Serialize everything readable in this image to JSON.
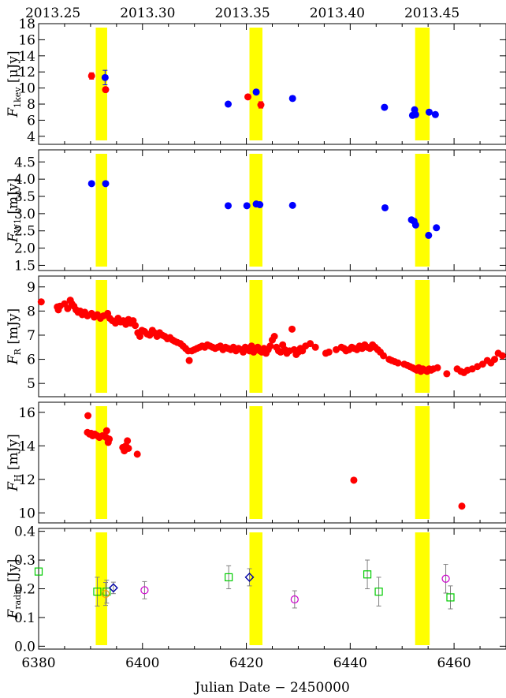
{
  "figure": {
    "top_axis_ticks": [
      "2013.25",
      "2013.30",
      "2013.35",
      "2013.40",
      "2013.45"
    ],
    "top_axis_tick_jd": [
      6382.75,
      6401.0,
      6419.25,
      6437.5,
      6455.75
    ],
    "xlabel": "Julian Date − 2450000",
    "xlim": [
      6380,
      6470
    ],
    "x_ticks": [
      "6380",
      "6400",
      "6420",
      "6440",
      "6460"
    ],
    "highlight_bands": [
      [
        6391.0,
        6393.2
      ],
      [
        6420.6,
        6423.1
      ],
      [
        6452.5,
        6455.3
      ]
    ],
    "highlight_color": "#ffff00",
    "colors": {
      "red": "#ff0000",
      "blue": "#0000ff",
      "green": "#00cc00",
      "magenta": "#cc00cc",
      "orange": "#ff9900",
      "navy": "#0000aa",
      "grey_errorbar": "#808080"
    }
  },
  "chart_data": [
    {
      "type": "scatter",
      "panel": "F_1kev",
      "ylabel_main": "F",
      "ylabel_sub": "1kev",
      "ylabel_unit": "[μJy]",
      "ylim": [
        3,
        18
      ],
      "y_ticks": [
        "4",
        "6",
        "8",
        "10",
        "12",
        "14",
        "16",
        "18"
      ],
      "series": [
        {
          "color": "red",
          "marker": "filled-circle",
          "points": [
            [
              6390.2,
              11.5,
              0.4
            ],
            [
              6392.9,
              9.8,
              0.3
            ],
            [
              6420.3,
              8.9,
              0.2
            ],
            [
              6422.8,
              7.9,
              0.4
            ]
          ]
        },
        {
          "color": "blue",
          "marker": "filled-circle",
          "points": [
            [
              6392.8,
              11.3,
              0.9
            ],
            [
              6416.5,
              8.0,
              0.2
            ],
            [
              6421.9,
              9.5,
              0.3
            ],
            [
              6428.9,
              8.7,
              0.3
            ],
            [
              6446.6,
              7.6,
              0.3
            ],
            [
              6452.0,
              6.6,
              0.3
            ],
            [
              6452.4,
              7.3,
              0.3
            ],
            [
              6452.6,
              6.7,
              0.3
            ],
            [
              6455.2,
              7.0,
              0.3
            ],
            [
              6456.4,
              6.7,
              0.3
            ]
          ]
        }
      ]
    },
    {
      "type": "scatter",
      "panel": "F_W1",
      "ylabel_main": "F",
      "ylabel_sub": "W1",
      "ylabel_unit": "[mJy]",
      "ylim": [
        1.35,
        4.85
      ],
      "y_ticks": [
        "1.5",
        "2.0",
        "2.5",
        "3.0",
        "3.5",
        "4.0",
        "4.5"
      ],
      "series": [
        {
          "color": "blue",
          "marker": "filled-circle",
          "points": [
            [
              6390.2,
              3.87
            ],
            [
              6392.9,
              3.87
            ],
            [
              6416.5,
              3.23
            ],
            [
              6420.1,
              3.23
            ],
            [
              6421.9,
              3.28
            ],
            [
              6422.6,
              3.26
            ],
            [
              6428.9,
              3.24
            ],
            [
              6446.7,
              3.17
            ],
            [
              6451.8,
              2.82
            ],
            [
              6452.3,
              2.78
            ],
            [
              6452.6,
              2.67
            ],
            [
              6455.1,
              2.37
            ],
            [
              6456.6,
              2.59
            ]
          ]
        }
      ]
    },
    {
      "type": "scatter",
      "panel": "F_R",
      "ylabel_main": "F",
      "ylabel_sub": "R",
      "ylabel_unit": "[mJy]",
      "ylim": [
        4.45,
        9.45
      ],
      "y_ticks": [
        "5",
        "6",
        "7",
        "8",
        "9"
      ],
      "series": [
        {
          "color": "red",
          "marker": "filled-circle",
          "points": [
            [
              6380.5,
              8.38
            ],
            [
              6383.6,
              8.17
            ],
            [
              6383.8,
              8.05
            ],
            [
              6384.1,
              8.2
            ],
            [
              6385.0,
              8.3
            ],
            [
              6385.6,
              8.1
            ],
            [
              6386.1,
              8.45
            ],
            [
              6386.4,
              8.3
            ],
            [
              6386.8,
              8.2
            ],
            [
              6387.2,
              8.05
            ],
            [
              6387.6,
              7.95
            ],
            [
              6388.0,
              8.0
            ],
            [
              6388.4,
              7.85
            ],
            [
              6388.9,
              7.95
            ],
            [
              6389.4,
              7.8
            ],
            [
              6390.2,
              7.9
            ],
            [
              6390.7,
              7.75
            ],
            [
              6391.3,
              7.85
            ],
            [
              6391.9,
              7.7
            ],
            [
              6392.5,
              7.8
            ],
            [
              6393.3,
              7.9
            ],
            [
              6393.7,
              7.7
            ],
            [
              6394.2,
              7.6
            ],
            [
              6394.8,
              7.5
            ],
            [
              6395.3,
              7.7
            ],
            [
              6395.8,
              7.55
            ],
            [
              6396.3,
              7.6
            ],
            [
              6396.8,
              7.45
            ],
            [
              6397.3,
              7.65
            ],
            [
              6397.7,
              7.5
            ],
            [
              6398.2,
              7.6
            ],
            [
              6398.6,
              7.4
            ],
            [
              6399.1,
              7.1
            ],
            [
              6399.5,
              6.95
            ],
            [
              6399.9,
              7.2
            ],
            [
              6400.4,
              7.15
            ],
            [
              6400.9,
              7.05
            ],
            [
              6401.4,
              7.0
            ],
            [
              6401.9,
              7.2
            ],
            [
              6402.3,
              7.1
            ],
            [
              6402.8,
              6.95
            ],
            [
              6403.3,
              7.1
            ],
            [
              6403.8,
              7.0
            ],
            [
              6404.3,
              6.95
            ],
            [
              6404.8,
              6.85
            ],
            [
              6405.3,
              6.9
            ],
            [
              6405.8,
              6.8
            ],
            [
              6406.2,
              6.75
            ],
            [
              6406.7,
              6.7
            ],
            [
              6407.3,
              6.65
            ],
            [
              6407.8,
              6.55
            ],
            [
              6408.3,
              6.45
            ],
            [
              6408.8,
              6.35
            ],
            [
              6409.0,
              5.95
            ],
            [
              6409.5,
              6.35
            ],
            [
              6410.0,
              6.4
            ],
            [
              6410.5,
              6.45
            ],
            [
              6411.0,
              6.5
            ],
            [
              6411.5,
              6.55
            ],
            [
              6412.0,
              6.5
            ],
            [
              6412.5,
              6.6
            ],
            [
              6413.0,
              6.55
            ],
            [
              6413.5,
              6.5
            ],
            [
              6414.0,
              6.45
            ],
            [
              6414.5,
              6.5
            ],
            [
              6415.0,
              6.55
            ],
            [
              6415.5,
              6.4
            ],
            [
              6416.0,
              6.5
            ],
            [
              6416.5,
              6.45
            ],
            [
              6417.0,
              6.4
            ],
            [
              6417.5,
              6.5
            ],
            [
              6418.0,
              6.35
            ],
            [
              6418.5,
              6.45
            ],
            [
              6419.0,
              6.4
            ],
            [
              6419.4,
              6.3
            ],
            [
              6419.8,
              6.5
            ],
            [
              6420.2,
              6.45
            ],
            [
              6420.6,
              6.35
            ],
            [
              6421.0,
              6.55
            ],
            [
              6421.4,
              6.3
            ],
            [
              6421.8,
              6.4
            ],
            [
              6422.2,
              6.5
            ],
            [
              6422.6,
              6.35
            ],
            [
              6423.0,
              6.3
            ],
            [
              6423.4,
              6.45
            ],
            [
              6423.8,
              6.25
            ],
            [
              6424.2,
              6.4
            ],
            [
              6424.6,
              6.55
            ],
            [
              6425.0,
              6.8
            ],
            [
              6425.4,
              6.95
            ],
            [
              6425.8,
              6.5
            ],
            [
              6426.2,
              6.35
            ],
            [
              6426.6,
              6.3
            ],
            [
              6427.0,
              6.6
            ],
            [
              6427.4,
              6.4
            ],
            [
              6427.8,
              6.25
            ],
            [
              6428.3,
              6.35
            ],
            [
              6428.8,
              7.25
            ],
            [
              6429.2,
              6.4
            ],
            [
              6429.6,
              6.2
            ],
            [
              6430.0,
              6.3
            ],
            [
              6430.4,
              6.45
            ],
            [
              6430.8,
              6.35
            ],
            [
              6431.4,
              6.55
            ],
            [
              6432.3,
              6.65
            ],
            [
              6433.3,
              6.5
            ],
            [
              6435.3,
              6.25
            ],
            [
              6435.9,
              6.3
            ],
            [
              6437.3,
              6.4
            ],
            [
              6438.3,
              6.5
            ],
            [
              6438.8,
              6.45
            ],
            [
              6439.2,
              6.35
            ],
            [
              6439.8,
              6.4
            ],
            [
              6440.3,
              6.5
            ],
            [
              6440.8,
              6.45
            ],
            [
              6441.3,
              6.4
            ],
            [
              6441.8,
              6.55
            ],
            [
              6442.3,
              6.45
            ],
            [
              6442.8,
              6.6
            ],
            [
              6443.3,
              6.5
            ],
            [
              6443.8,
              6.45
            ],
            [
              6444.3,
              6.6
            ],
            [
              6444.8,
              6.5
            ],
            [
              6445.3,
              6.4
            ],
            [
              6445.8,
              6.3
            ],
            [
              6446.4,
              6.15
            ],
            [
              6447.5,
              6.0
            ],
            [
              6448.0,
              5.95
            ],
            [
              6448.6,
              5.9
            ],
            [
              6449.2,
              5.85
            ],
            [
              6450.4,
              5.8
            ],
            [
              6451.0,
              5.75
            ],
            [
              6451.5,
              5.7
            ],
            [
              6452.0,
              5.65
            ],
            [
              6452.4,
              5.6
            ],
            [
              6452.8,
              5.55
            ],
            [
              6453.2,
              5.65
            ],
            [
              6453.6,
              5.5
            ],
            [
              6454.0,
              5.6
            ],
            [
              6454.4,
              5.55
            ],
            [
              6454.8,
              5.5
            ],
            [
              6455.2,
              5.6
            ],
            [
              6455.6,
              5.55
            ],
            [
              6456.0,
              5.6
            ],
            [
              6456.8,
              5.65
            ],
            [
              6458.6,
              5.4
            ],
            [
              6460.6,
              5.6
            ],
            [
              6461.3,
              5.5
            ],
            [
              6461.9,
              5.45
            ],
            [
              6462.6,
              5.55
            ],
            [
              6463.5,
              5.6
            ],
            [
              6464.5,
              5.7
            ],
            [
              6465.5,
              5.8
            ],
            [
              6466.4,
              5.95
            ],
            [
              6467.1,
              5.85
            ],
            [
              6467.8,
              6.0
            ],
            [
              6468.5,
              6.25
            ],
            [
              6469.3,
              6.15
            ]
          ]
        }
      ]
    },
    {
      "type": "scatter",
      "panel": "F_H",
      "ylabel_main": "F",
      "ylabel_sub": "H",
      "ylabel_unit": "[mJy]",
      "ylim": [
        9.4,
        16.6
      ],
      "y_ticks": [
        "10",
        "12",
        "14",
        "16"
      ],
      "series": [
        {
          "color": "red",
          "marker": "filled-circle",
          "points": [
            [
              6389.5,
              15.8
            ],
            [
              6389.4,
              14.8
            ],
            [
              6389.8,
              14.7
            ],
            [
              6390.1,
              14.75
            ],
            [
              6390.4,
              14.6
            ],
            [
              6390.8,
              14.7
            ],
            [
              6391.3,
              14.6
            ],
            [
              6391.7,
              14.5
            ],
            [
              6392.3,
              14.6
            ],
            [
              6393.1,
              14.9
            ],
            [
              6393.0,
              14.5
            ],
            [
              6393.4,
              14.2
            ],
            [
              6393.6,
              14.4
            ],
            [
              6396.2,
              13.9
            ],
            [
              6396.5,
              13.7
            ],
            [
              6396.8,
              14.0
            ],
            [
              6397.1,
              14.3
            ],
            [
              6397.3,
              13.85
            ],
            [
              6399.0,
              13.5
            ],
            [
              6440.7,
              11.95
            ],
            [
              6461.5,
              10.4
            ]
          ]
        }
      ]
    },
    {
      "type": "scatter",
      "panel": "F_radio",
      "ylabel_main": "F",
      "ylabel_sub": "radio",
      "ylabel_unit": "[Jy]",
      "ylim": [
        -0.01,
        0.41
      ],
      "y_ticks": [
        "0.0",
        "0.1",
        "0.2",
        "0.3",
        "0.4"
      ],
      "series": [
        {
          "color": "green",
          "marker": "open-square",
          "points": [
            [
              6380.0,
              0.26,
              0.0
            ],
            [
              6391.3,
              0.19,
              0.05
            ],
            [
              6393.1,
              0.19,
              0.04
            ],
            [
              6416.6,
              0.24,
              0.04
            ],
            [
              6443.3,
              0.25,
              0.05
            ],
            [
              6445.5,
              0.19,
              0.05
            ],
            [
              6459.3,
              0.17,
              0.04
            ]
          ]
        },
        {
          "color": "magenta",
          "marker": "open-circle",
          "points": [
            [
              6400.4,
              0.195,
              0.03
            ],
            [
              6429.3,
              0.163,
              0.03
            ],
            [
              6458.4,
              0.235,
              0.05
            ]
          ]
        },
        {
          "color": "orange",
          "marker": "open-circle",
          "points": [
            [
              6392.9,
              0.182,
              0.04
            ]
          ]
        },
        {
          "color": "navy",
          "marker": "open-diamond",
          "points": [
            [
              6394.4,
              0.203,
              0.02
            ],
            [
              6420.6,
              0.24,
              0.03
            ]
          ]
        }
      ]
    }
  ]
}
